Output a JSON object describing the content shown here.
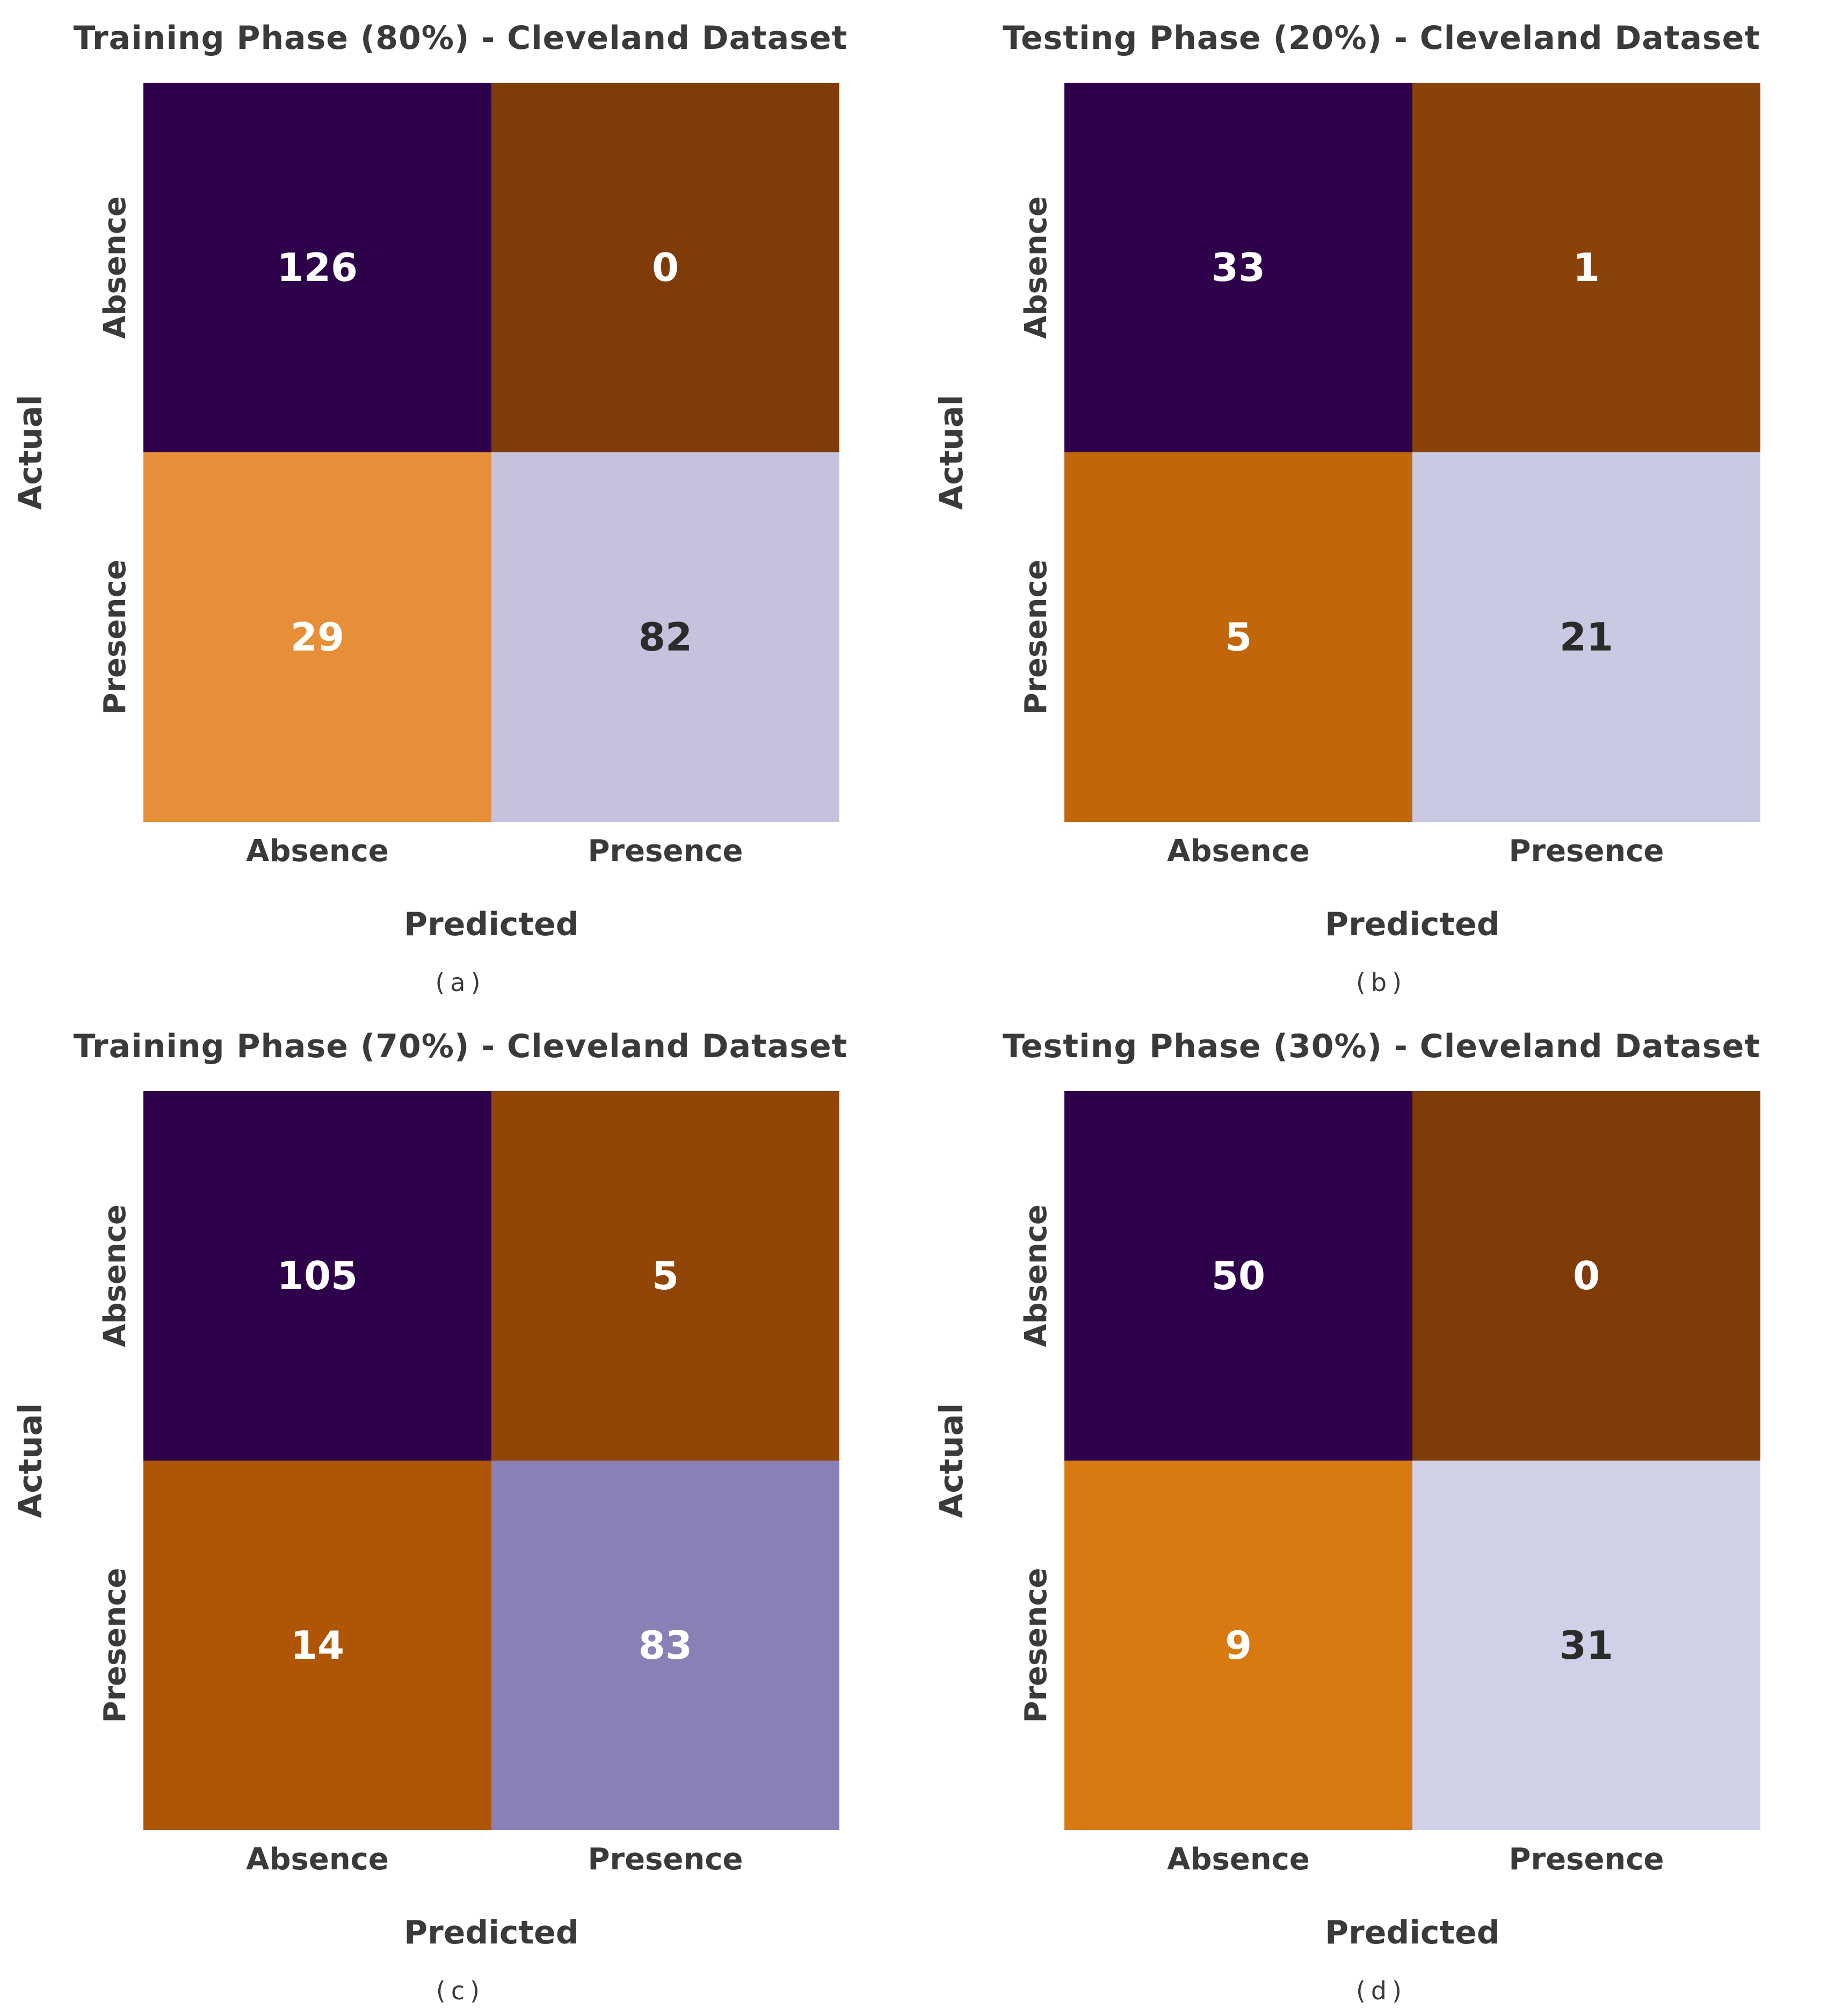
{
  "figure": {
    "background": "#ffffff",
    "text_color": "#3a3a3a",
    "panels": [
      {
        "id": "a",
        "title": "Training Phase (80%) - Cleveland Dataset",
        "ylabel": "Actual",
        "xlabel": "Predicted",
        "caption": "(a)",
        "y_ticklabels": [
          "Absence",
          "Presence"
        ],
        "x_ticklabels": [
          "Absence",
          "Presence"
        ],
        "cells": [
          {
            "value": "126",
            "bg": "#2d024a",
            "fg": "#ffffff"
          },
          {
            "value": "0",
            "bg": "#7f3b08",
            "fg": "#ffffff"
          },
          {
            "value": "29",
            "bg": "#e68f38",
            "fg": "#ffffff"
          },
          {
            "value": "82",
            "bg": "#c5c2de",
            "fg": "#2b2b2b"
          }
        ]
      },
      {
        "id": "b",
        "title": "Testing Phase (20%) - Cleveland Dataset",
        "ylabel": "Actual",
        "xlabel": "Predicted",
        "caption": "(b)",
        "y_ticklabels": [
          "Absence",
          "Presence"
        ],
        "x_ticklabels": [
          "Absence",
          "Presence"
        ],
        "cells": [
          {
            "value": "33",
            "bg": "#2d024a",
            "fg": "#ffffff"
          },
          {
            "value": "1",
            "bg": "#8a4208",
            "fg": "#ffffff"
          },
          {
            "value": "5",
            "bg": "#c1660a",
            "fg": "#ffffff"
          },
          {
            "value": "21",
            "bg": "#cac9e2",
            "fg": "#2b2b2b"
          }
        ]
      },
      {
        "id": "c",
        "title": "Training Phase (70%) - Cleveland Dataset",
        "ylabel": "Actual",
        "xlabel": "Predicted",
        "caption": "(c)",
        "y_ticklabels": [
          "Absence",
          "Presence"
        ],
        "x_ticklabels": [
          "Absence",
          "Presence"
        ],
        "cells": [
          {
            "value": "105",
            "bg": "#2d024a",
            "fg": "#ffffff"
          },
          {
            "value": "5",
            "bg": "#914507",
            "fg": "#ffffff"
          },
          {
            "value": "14",
            "bg": "#ae5606",
            "fg": "#ffffff"
          },
          {
            "value": "83",
            "bg": "#8b80b5",
            "fg": "#ffffff"
          }
        ]
      },
      {
        "id": "d",
        "title": "Testing Phase (30%) - Cleveland Dataset",
        "ylabel": "Actual",
        "xlabel": "Predicted",
        "caption": "(d)",
        "y_ticklabels": [
          "Absence",
          "Presence"
        ],
        "x_ticklabels": [
          "Absence",
          "Presence"
        ],
        "cells": [
          {
            "value": "50",
            "bg": "#2d024a",
            "fg": "#ffffff"
          },
          {
            "value": "0",
            "bg": "#7f3b08",
            "fg": "#ffffff"
          },
          {
            "value": "9",
            "bg": "#d87a12",
            "fg": "#ffffff"
          },
          {
            "value": "31",
            "bg": "#d0d0e6",
            "fg": "#2b2b2b"
          }
        ]
      }
    ]
  },
  "chart_data": [
    {
      "type": "heatmap",
      "title": "Training Phase (80%) - Cleveland Dataset",
      "caption": "(a)",
      "xlabel": "Predicted",
      "ylabel": "Actual",
      "x_categories": [
        "Absence",
        "Presence"
      ],
      "y_categories": [
        "Absence",
        "Presence"
      ],
      "values": [
        [
          126,
          0
        ],
        [
          29,
          82
        ]
      ],
      "colormap": "PuOr",
      "annotations_on": true,
      "legend": "none",
      "grid": false
    },
    {
      "type": "heatmap",
      "title": "Testing Phase (20%) - Cleveland Dataset",
      "caption": "(b)",
      "xlabel": "Predicted",
      "ylabel": "Actual",
      "x_categories": [
        "Absence",
        "Presence"
      ],
      "y_categories": [
        "Absence",
        "Presence"
      ],
      "values": [
        [
          33,
          1
        ],
        [
          5,
          21
        ]
      ],
      "colormap": "PuOr",
      "annotations_on": true,
      "legend": "none",
      "grid": false
    },
    {
      "type": "heatmap",
      "title": "Training Phase (70%) - Cleveland Dataset",
      "caption": "(c)",
      "xlabel": "Predicted",
      "ylabel": "Actual",
      "x_categories": [
        "Absence",
        "Presence"
      ],
      "y_categories": [
        "Absence",
        "Presence"
      ],
      "values": [
        [
          105,
          5
        ],
        [
          14,
          83
        ]
      ],
      "colormap": "PuOr",
      "annotations_on": true,
      "legend": "none",
      "grid": false
    },
    {
      "type": "heatmap",
      "title": "Testing Phase (30%) - Cleveland Dataset",
      "caption": "(d)",
      "xlabel": "Predicted",
      "ylabel": "Actual",
      "x_categories": [
        "Absence",
        "Presence"
      ],
      "y_categories": [
        "Absence",
        "Presence"
      ],
      "values": [
        [
          50,
          0
        ],
        [
          9,
          31
        ]
      ],
      "colormap": "PuOr",
      "annotations_on": true,
      "legend": "none",
      "grid": false
    }
  ]
}
